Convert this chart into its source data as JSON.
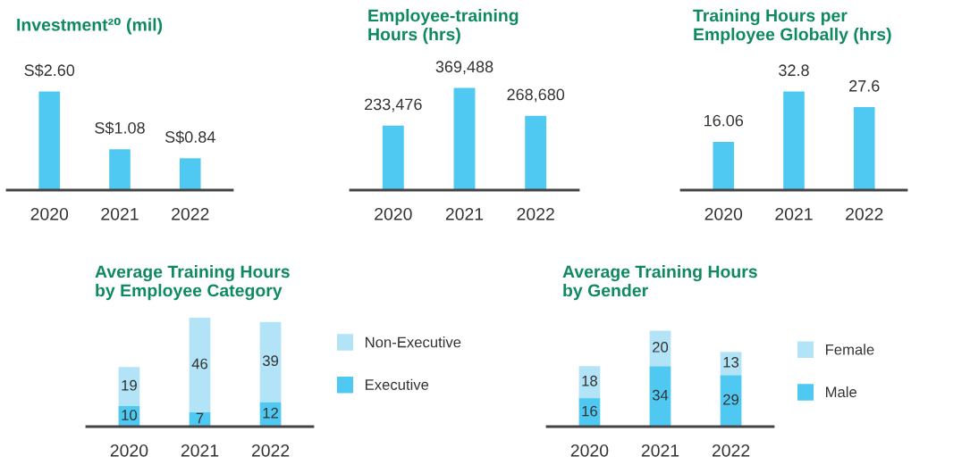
{
  "chart_data": [
    {
      "type": "bar",
      "title": "Investment²⁰ (mil)",
      "categories": [
        "2020",
        "2021",
        "2022"
      ],
      "values": [
        2.6,
        1.08,
        0.84
      ],
      "value_labels": [
        "S$2.60",
        "S$1.08",
        "S$0.84"
      ],
      "color": "#4fc9f2"
    },
    {
      "type": "bar",
      "title": "Employee-training\nHours (hrs)",
      "categories": [
        "2020",
        "2021",
        "2022"
      ],
      "values": [
        233476,
        369488,
        268680
      ],
      "value_labels": [
        "233,476",
        "369,488",
        "268,680"
      ],
      "color": "#4fc9f2"
    },
    {
      "type": "bar",
      "title": "Training Hours per\nEmployee Globally (hrs)",
      "categories": [
        "2020",
        "2021",
        "2022"
      ],
      "values": [
        16.06,
        32.8,
        27.6
      ],
      "value_labels": [
        "16.06",
        "32.8",
        "27.6"
      ],
      "color": "#4fc9f2"
    },
    {
      "type": "bar",
      "title": "Average Training Hours\nby Employee Category",
      "categories": [
        "2020",
        "2021",
        "2022"
      ],
      "stacked": true,
      "data_labels": true,
      "legend": "right",
      "series": [
        {
          "name": "Executive",
          "color": "#4fc9f2",
          "values": [
            10,
            7,
            12
          ]
        },
        {
          "name": "Non-Executive",
          "color": "#b3e3f6",
          "values": [
            19,
            46,
            39
          ]
        }
      ]
    },
    {
      "type": "bar",
      "title": "Average Training Hours\nby Gender",
      "categories": [
        "2020",
        "2021",
        "2022"
      ],
      "stacked": true,
      "data_labels": true,
      "legend": "right",
      "series": [
        {
          "name": "Male",
          "color": "#4fc9f2",
          "values": [
            16,
            34,
            29
          ]
        },
        {
          "name": "Female",
          "color": "#b3e3f6",
          "values": [
            18,
            20,
            13
          ]
        }
      ]
    }
  ]
}
